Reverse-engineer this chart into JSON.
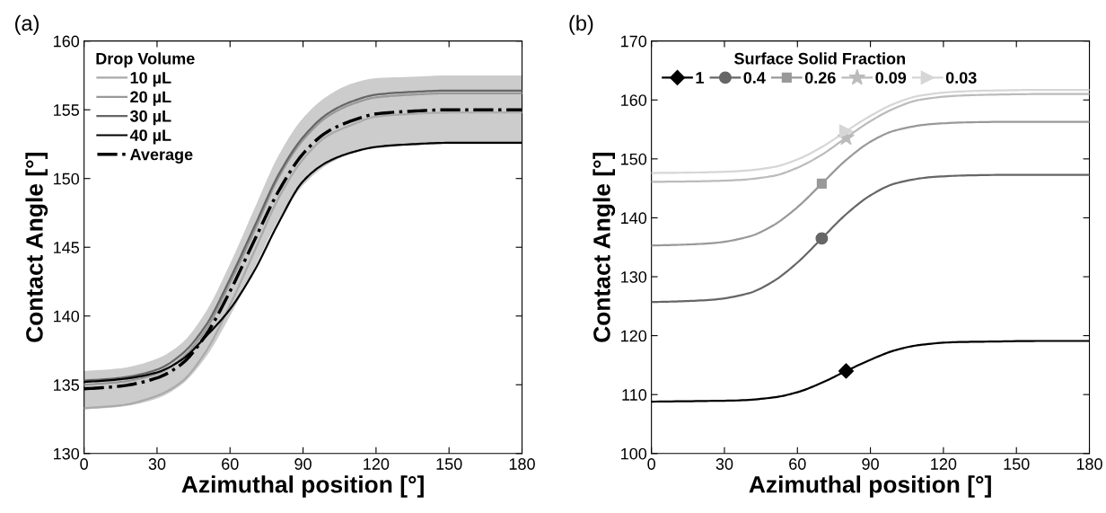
{
  "chart_data": [
    {
      "type": "line",
      "title": "(a)",
      "xlabel": "Azimuthal position [°]",
      "ylabel": "Contact Angle [°]",
      "legend_title": "Drop Volume",
      "legend": "top left",
      "x": [
        0,
        15,
        30,
        40,
        50,
        60,
        70,
        80,
        90,
        100,
        110,
        120,
        135,
        150,
        180
      ],
      "xlim": [
        0,
        180
      ],
      "xticks": [
        0,
        30,
        60,
        90,
        120,
        150,
        180
      ],
      "ylim": [
        130,
        160
      ],
      "yticks": [
        130,
        135,
        140,
        145,
        150,
        155,
        160
      ],
      "grid": false,
      "series": [
        {
          "name": "10 µL",
          "color": "#aaaaaa",
          "values": [
            133.3,
            133.5,
            134.2,
            135.2,
            137.4,
            140.8,
            144.7,
            148.6,
            151.4,
            153.1,
            153.9,
            154.5,
            154.7,
            154.8,
            154.8
          ]
        },
        {
          "name": "20 µL",
          "color": "#999999",
          "values": [
            135.0,
            135.2,
            135.8,
            136.9,
            139.0,
            142.4,
            146.2,
            150.1,
            152.8,
            154.5,
            155.4,
            155.9,
            156.1,
            156.2,
            156.2
          ]
        },
        {
          "name": "30 µL",
          "color": "#666666",
          "values": [
            135.3,
            135.5,
            136.1,
            137.2,
            139.3,
            142.7,
            146.5,
            150.3,
            153.0,
            154.7,
            155.6,
            156.1,
            156.3,
            156.4,
            156.4
          ]
        },
        {
          "name": "40 µL",
          "color": "#000000",
          "values": [
            135.2,
            135.4,
            135.9,
            136.8,
            138.5,
            140.5,
            143.3,
            146.8,
            149.8,
            151.2,
            151.9,
            152.3,
            152.5,
            152.6,
            152.6
          ]
        },
        {
          "name": "Average",
          "color": "#000000",
          "line_style": "dashdot",
          "values": [
            134.7,
            134.9,
            135.5,
            136.5,
            138.6,
            141.8,
            145.5,
            149.1,
            151.8,
            153.4,
            154.2,
            154.7,
            154.9,
            155.0,
            155.0
          ],
          "lower": [
            133.2,
            133.4,
            134.0,
            135.0,
            137.0,
            140.0,
            143.5,
            147.0,
            149.5,
            151.0,
            151.8,
            152.2,
            152.4,
            152.5,
            152.5
          ],
          "upper": [
            136.0,
            136.2,
            136.9,
            138.0,
            140.3,
            143.8,
            147.8,
            151.7,
            154.4,
            156.0,
            156.9,
            157.3,
            157.4,
            157.5,
            157.5
          ]
        }
      ]
    },
    {
      "type": "line",
      "title": "(b)",
      "xlabel": "Azimuthal position [°]",
      "ylabel": "Contact Angle [°]",
      "legend_title": "Surface Solid Fraction",
      "legend": "top left",
      "xlim": [
        0,
        180
      ],
      "xticks": [
        0,
        30,
        60,
        90,
        120,
        150,
        180
      ],
      "ylim": [
        100,
        170
      ],
      "yticks": [
        100,
        110,
        120,
        130,
        140,
        150,
        160,
        170
      ],
      "grid": false,
      "series": [
        {
          "name": "1",
          "color": "#000000",
          "x": [
            0,
            20,
            35,
            50,
            60,
            70,
            80,
            90,
            100,
            110,
            125,
            140,
            160,
            180
          ],
          "values": [
            108.8,
            108.9,
            109.0,
            109.5,
            110.4,
            112.0,
            114.0,
            115.9,
            117.5,
            118.4,
            118.9,
            119.0,
            119.1,
            119.1
          ]
        },
        {
          "name": "0.4",
          "color": "#666666",
          "x": [
            0,
            10,
            25,
            40,
            50,
            60,
            70,
            80,
            90,
            100,
            115,
            130,
            150,
            180
          ],
          "values": [
            125.7,
            125.8,
            126.1,
            127.2,
            129.2,
            132.4,
            136.5,
            140.6,
            143.8,
            145.8,
            146.9,
            147.2,
            147.3,
            147.3
          ]
        },
        {
          "name": "0.26",
          "color": "#999999",
          "x": [
            0,
            10,
            25,
            40,
            50,
            60,
            70,
            80,
            90,
            100,
            115,
            130,
            150,
            180
          ],
          "values": [
            135.3,
            135.4,
            135.7,
            136.8,
            138.7,
            141.8,
            145.8,
            149.8,
            152.9,
            154.8,
            155.9,
            156.2,
            156.3,
            156.3
          ]
        },
        {
          "name": "0.09",
          "color": "#bbbbbb",
          "x": [
            0,
            20,
            35,
            50,
            60,
            70,
            80,
            90,
            100,
            110,
            125,
            140,
            160,
            180
          ],
          "values": [
            146.1,
            146.2,
            146.4,
            147.1,
            148.5,
            150.7,
            153.6,
            156.4,
            158.6,
            160.0,
            160.7,
            160.9,
            161.0,
            161.0
          ]
        },
        {
          "name": "0.03",
          "color": "#d6d6d6",
          "x": [
            0,
            20,
            35,
            50,
            60,
            70,
            80,
            90,
            100,
            110,
            125,
            140,
            160,
            180
          ],
          "values": [
            147.6,
            147.7,
            147.9,
            148.6,
            149.9,
            152.0,
            154.7,
            157.3,
            159.4,
            160.7,
            161.4,
            161.6,
            161.7,
            161.7
          ]
        },
        {
          "type": "scatter",
          "color": "#000000",
          "marker": "diamond",
          "x": [
            80
          ],
          "values": [
            114.0
          ]
        },
        {
          "type": "scatter",
          "color": "#666666",
          "marker": "circle",
          "x": [
            70
          ],
          "values": [
            136.5
          ]
        },
        {
          "type": "scatter",
          "color": "#999999",
          "marker": "square",
          "x": [
            70
          ],
          "values": [
            145.8
          ]
        },
        {
          "type": "scatter",
          "color": "#bbbbbb",
          "marker": "star",
          "x": [
            80
          ],
          "values": [
            153.6
          ]
        },
        {
          "type": "scatter",
          "color": "#d6d6d6",
          "marker": "triangle",
          "x": [
            80
          ],
          "values": [
            154.7
          ]
        }
      ]
    }
  ]
}
